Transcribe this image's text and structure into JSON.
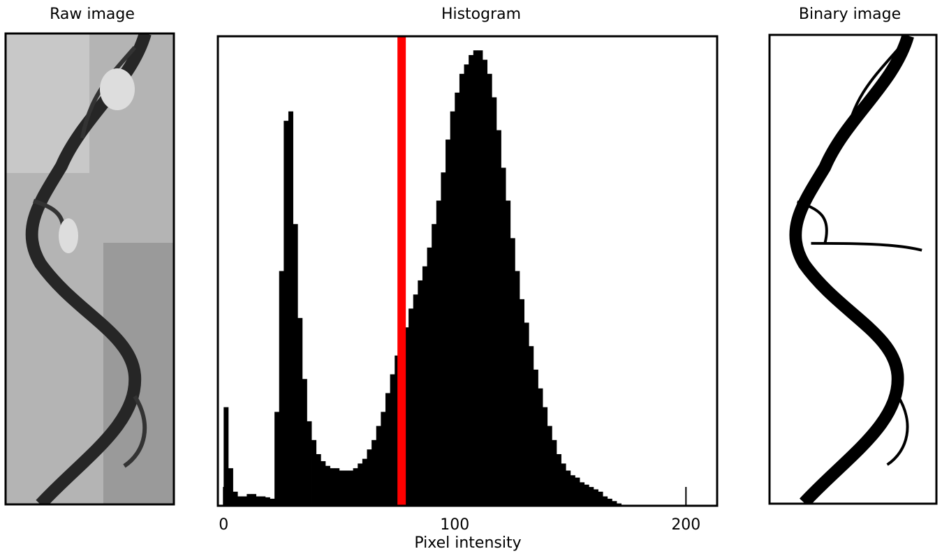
{
  "chart_data": {
    "type": "histogram",
    "title": "Histogram",
    "panel_titles": [
      "Raw image",
      "Binary image"
    ],
    "x_label": "Pixel intensity",
    "bins": [
      0,
      2,
      4,
      6,
      8,
      10,
      12,
      14,
      16,
      18,
      20,
      22,
      24,
      26,
      28,
      30,
      32,
      34,
      36,
      38,
      40,
      42,
      44,
      46,
      48,
      50,
      52,
      54,
      56,
      58,
      60,
      62,
      64,
      66,
      68,
      70,
      72,
      74,
      76,
      78,
      80,
      82,
      84,
      86,
      88,
      90,
      92,
      94,
      96,
      98,
      100,
      102,
      104,
      106,
      108,
      110,
      112,
      114,
      116,
      118,
      120,
      122,
      124,
      126,
      128,
      130,
      132,
      134,
      136,
      138,
      140,
      142,
      144,
      146,
      148,
      150,
      152,
      154,
      156,
      158,
      160,
      162,
      164,
      166,
      168,
      170,
      172
    ],
    "values": [
      21,
      8,
      3,
      2,
      2,
      2.5,
      2.5,
      2,
      2,
      1.8,
      1.5,
      20,
      50,
      82,
      84,
      60,
      40,
      27,
      18,
      14,
      11,
      9.5,
      8.5,
      8,
      8,
      7.5,
      7.5,
      7.5,
      8,
      9,
      10,
      12,
      14,
      17,
      20,
      24,
      28,
      32,
      35,
      38,
      42,
      45,
      48,
      51,
      55,
      60,
      65,
      71,
      78,
      84,
      88,
      92,
      94,
      96,
      97,
      97,
      95,
      92,
      87,
      80,
      72,
      65,
      57,
      50,
      44,
      39,
      34,
      29,
      25,
      21,
      17,
      14,
      11,
      9,
      7.5,
      6.5,
      6,
      5,
      4.5,
      4,
      3.5,
      3,
      2,
      1.5,
      1,
      0.5
    ],
    "color": "#000000",
    "threshold": 77,
    "threshold_color": "#ff0000",
    "xlim": [
      -2.5,
      213.5
    ],
    "ylim": [
      0,
      100
    ],
    "xticks": [
      0,
      100,
      200
    ]
  }
}
